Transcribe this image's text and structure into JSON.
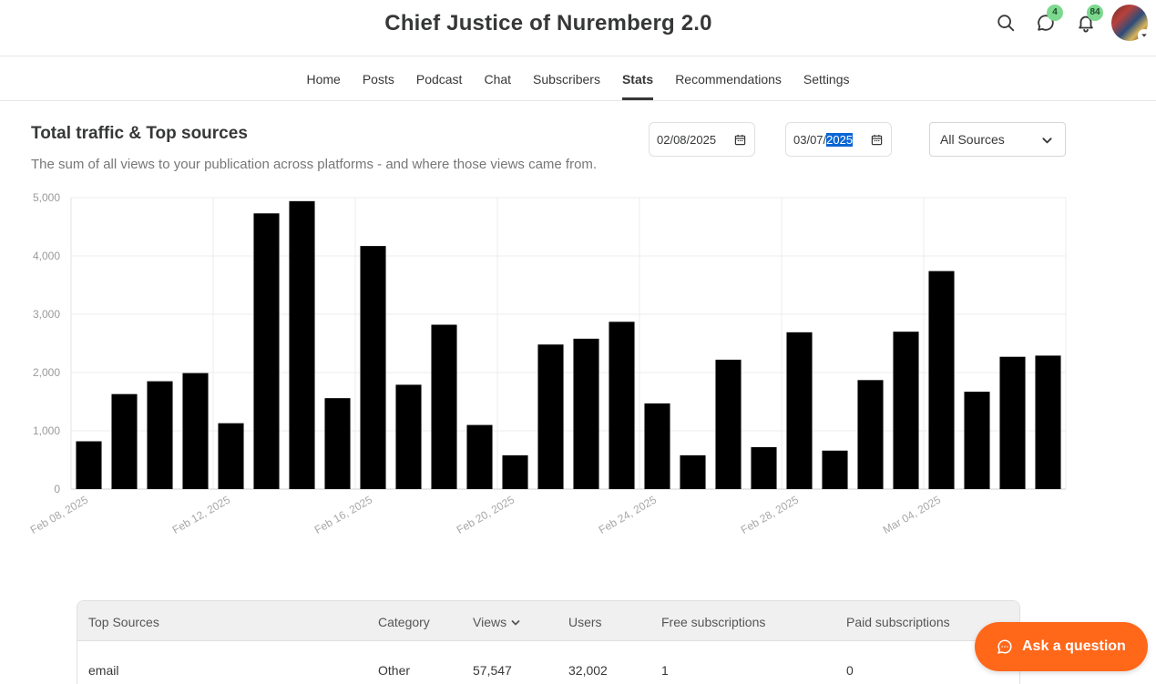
{
  "header": {
    "title": "Chief Justice of Nuremberg 2.0",
    "messages_badge": "4",
    "notifications_badge": "84"
  },
  "nav": {
    "tabs": [
      {
        "label": "Home"
      },
      {
        "label": "Posts"
      },
      {
        "label": "Podcast"
      },
      {
        "label": "Chat"
      },
      {
        "label": "Subscribers"
      },
      {
        "label": "Stats",
        "active": true
      },
      {
        "label": "Recommendations"
      },
      {
        "label": "Settings"
      }
    ]
  },
  "section": {
    "title": "Total traffic & Top sources",
    "subtitle": "The sum of all views to your publication across platforms - and where those views came from."
  },
  "filters": {
    "start_date": "02/08/2025",
    "end_date_prefix": "03/07/",
    "end_date_selected": "2025",
    "source_select": "All Sources"
  },
  "chart_data": {
    "type": "bar",
    "categories": [
      "Feb 08, 2025",
      "Feb 09, 2025",
      "Feb 10, 2025",
      "Feb 11, 2025",
      "Feb 12, 2025",
      "Feb 13, 2025",
      "Feb 14, 2025",
      "Feb 15, 2025",
      "Feb 16, 2025",
      "Feb 17, 2025",
      "Feb 18, 2025",
      "Feb 19, 2025",
      "Feb 20, 2025",
      "Feb 21, 2025",
      "Feb 22, 2025",
      "Feb 23, 2025",
      "Feb 24, 2025",
      "Feb 25, 2025",
      "Feb 26, 2025",
      "Feb 27, 2025",
      "Feb 28, 2025",
      "Mar 01, 2025",
      "Mar 02, 2025",
      "Mar 03, 2025",
      "Mar 04, 2025",
      "Mar 05, 2025",
      "Mar 06, 2025",
      "Mar 07, 2025"
    ],
    "values": [
      820,
      1630,
      1850,
      1990,
      1130,
      4730,
      4940,
      1560,
      4170,
      1790,
      2820,
      1100,
      580,
      2480,
      2580,
      2870,
      1470,
      580,
      2220,
      720,
      2690,
      660,
      1870,
      2700,
      3740,
      1670,
      2270,
      2290
    ],
    "x_tick_labels": [
      "Feb 08, 2025",
      "Feb 12, 2025",
      "Feb 16, 2025",
      "Feb 20, 2025",
      "Feb 24, 2025",
      "Feb 28, 2025",
      "Mar 04, 2025"
    ],
    "y_tick_labels": [
      "0",
      "1,000",
      "2,000",
      "3,000",
      "4,000",
      "5,000"
    ],
    "ylim": [
      0,
      5000
    ],
    "grid": true,
    "bar_color": "#000000"
  },
  "table": {
    "columns": [
      "Top Sources",
      "Category",
      "Views",
      "Users",
      "Free subscriptions",
      "Paid subscriptions"
    ],
    "rows": [
      {
        "source": "email",
        "category": "Other",
        "views": "57,547",
        "users": "32,002",
        "free": "1",
        "paid": "0"
      }
    ]
  },
  "ask_button": {
    "label": "Ask a question"
  }
}
